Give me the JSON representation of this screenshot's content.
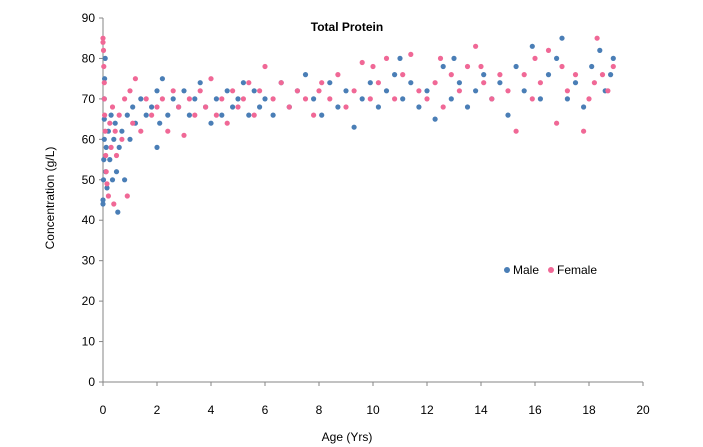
{
  "chart_data": {
    "type": "scatter",
    "title": "Total Protein",
    "xlabel": "Age (Yrs)",
    "ylabel": "Concentration (g/L)",
    "xlim": [
      0,
      20
    ],
    "ylim": [
      0,
      90
    ],
    "x_ticks": [
      "0",
      "2",
      "4",
      "6",
      "8",
      "10",
      "12",
      "14",
      "16",
      "18",
      "20"
    ],
    "y_ticks": [
      "0",
      "10",
      "20",
      "30",
      "40",
      "50",
      "60",
      "70",
      "80",
      "90"
    ],
    "grid": false,
    "legend_position": "right",
    "series": [
      {
        "name": "Male",
        "color": "#4a7eb6",
        "points": [
          [
            0.0,
            44
          ],
          [
            0.0,
            45
          ],
          [
            0.02,
            50
          ],
          [
            0.03,
            55
          ],
          [
            0.05,
            60
          ],
          [
            0.05,
            65
          ],
          [
            0.05,
            70
          ],
          [
            0.06,
            75
          ],
          [
            0.08,
            80
          ],
          [
            0.1,
            52
          ],
          [
            0.12,
            58
          ],
          [
            0.15,
            48
          ],
          [
            0.2,
            62
          ],
          [
            0.25,
            55
          ],
          [
            0.3,
            66
          ],
          [
            0.35,
            50
          ],
          [
            0.4,
            60
          ],
          [
            0.45,
            64
          ],
          [
            0.5,
            52
          ],
          [
            0.55,
            42
          ],
          [
            0.6,
            58
          ],
          [
            0.7,
            62
          ],
          [
            0.8,
            50
          ],
          [
            0.9,
            66
          ],
          [
            1.0,
            60
          ],
          [
            1.1,
            68
          ],
          [
            1.2,
            64
          ],
          [
            1.4,
            70
          ],
          [
            1.6,
            66
          ],
          [
            1.8,
            68
          ],
          [
            2.0,
            58
          ],
          [
            2.0,
            72
          ],
          [
            2.1,
            64
          ],
          [
            2.2,
            75
          ],
          [
            2.4,
            66
          ],
          [
            2.6,
            70
          ],
          [
            2.8,
            68
          ],
          [
            3.0,
            72
          ],
          [
            3.2,
            66
          ],
          [
            3.4,
            70
          ],
          [
            3.6,
            74
          ],
          [
            3.8,
            68
          ],
          [
            4.0,
            64
          ],
          [
            4.2,
            70
          ],
          [
            4.4,
            66
          ],
          [
            4.6,
            72
          ],
          [
            4.8,
            68
          ],
          [
            5.0,
            70
          ],
          [
            5.2,
            74
          ],
          [
            5.4,
            66
          ],
          [
            5.6,
            72
          ],
          [
            5.8,
            68
          ],
          [
            6.0,
            70
          ],
          [
            6.3,
            66
          ],
          [
            6.6,
            74
          ],
          [
            6.9,
            68
          ],
          [
            7.2,
            72
          ],
          [
            7.5,
            76
          ],
          [
            7.8,
            70
          ],
          [
            8.1,
            66
          ],
          [
            8.4,
            74
          ],
          [
            8.7,
            68
          ],
          [
            9.0,
            72
          ],
          [
            9.3,
            63
          ],
          [
            9.6,
            70
          ],
          [
            9.9,
            74
          ],
          [
            10.2,
            68
          ],
          [
            10.5,
            72
          ],
          [
            10.8,
            76
          ],
          [
            11.1,
            70
          ],
          [
            11.4,
            74
          ],
          [
            11.7,
            68
          ],
          [
            12.0,
            72
          ],
          [
            12.3,
            65
          ],
          [
            12.6,
            78
          ],
          [
            12.9,
            70
          ],
          [
            13.2,
            74
          ],
          [
            13.5,
            68
          ],
          [
            13.8,
            72
          ],
          [
            14.1,
            76
          ],
          [
            14.4,
            70
          ],
          [
            14.7,
            74
          ],
          [
            15.0,
            66
          ],
          [
            15.3,
            78
          ],
          [
            15.6,
            72
          ],
          [
            15.9,
            83
          ],
          [
            16.2,
            70
          ],
          [
            16.5,
            76
          ],
          [
            16.8,
            80
          ],
          [
            17.0,
            85
          ],
          [
            17.2,
            70
          ],
          [
            17.5,
            74
          ],
          [
            17.8,
            68
          ],
          [
            18.1,
            78
          ],
          [
            18.4,
            82
          ],
          [
            18.6,
            72
          ],
          [
            18.8,
            76
          ],
          [
            18.9,
            80
          ],
          [
            13.0,
            80
          ],
          [
            11.0,
            80
          ]
        ]
      },
      {
        "name": "Female",
        "color": "#f06896",
        "points": [
          [
            0.0,
            85
          ],
          [
            0.0,
            84
          ],
          [
            0.02,
            82
          ],
          [
            0.03,
            78
          ],
          [
            0.05,
            74
          ],
          [
            0.05,
            70
          ],
          [
            0.06,
            66
          ],
          [
            0.08,
            62
          ],
          [
            0.1,
            56
          ],
          [
            0.12,
            52
          ],
          [
            0.15,
            49
          ],
          [
            0.2,
            46
          ],
          [
            0.25,
            64
          ],
          [
            0.3,
            58
          ],
          [
            0.35,
            68
          ],
          [
            0.4,
            44
          ],
          [
            0.45,
            62
          ],
          [
            0.5,
            56
          ],
          [
            0.6,
            66
          ],
          [
            0.7,
            60
          ],
          [
            0.8,
            70
          ],
          [
            0.9,
            46
          ],
          [
            1.0,
            72
          ],
          [
            1.1,
            64
          ],
          [
            1.2,
            75
          ],
          [
            1.4,
            62
          ],
          [
            1.6,
            70
          ],
          [
            1.8,
            66
          ],
          [
            2.0,
            68
          ],
          [
            2.2,
            70
          ],
          [
            2.4,
            62
          ],
          [
            2.6,
            72
          ],
          [
            2.8,
            68
          ],
          [
            3.0,
            61
          ],
          [
            3.2,
            70
          ],
          [
            3.4,
            66
          ],
          [
            3.6,
            72
          ],
          [
            3.8,
            68
          ],
          [
            4.0,
            75
          ],
          [
            4.2,
            66
          ],
          [
            4.4,
            70
          ],
          [
            4.6,
            64
          ],
          [
            4.8,
            72
          ],
          [
            5.0,
            68
          ],
          [
            5.2,
            70
          ],
          [
            5.4,
            74
          ],
          [
            5.6,
            66
          ],
          [
            5.8,
            72
          ],
          [
            6.0,
            78
          ],
          [
            6.3,
            70
          ],
          [
            6.6,
            74
          ],
          [
            6.9,
            68
          ],
          [
            7.2,
            72
          ],
          [
            7.5,
            70
          ],
          [
            7.8,
            66
          ],
          [
            8.1,
            74
          ],
          [
            8.4,
            70
          ],
          [
            8.7,
            76
          ],
          [
            9.0,
            68
          ],
          [
            9.3,
            72
          ],
          [
            9.6,
            79
          ],
          [
            9.9,
            70
          ],
          [
            10.2,
            74
          ],
          [
            10.5,
            80
          ],
          [
            10.8,
            70
          ],
          [
            11.1,
            76
          ],
          [
            11.4,
            81
          ],
          [
            11.7,
            72
          ],
          [
            12.0,
            70
          ],
          [
            12.3,
            74
          ],
          [
            12.6,
            68
          ],
          [
            12.9,
            76
          ],
          [
            13.2,
            72
          ],
          [
            13.5,
            78
          ],
          [
            13.8,
            83
          ],
          [
            14.1,
            74
          ],
          [
            14.4,
            70
          ],
          [
            14.7,
            76
          ],
          [
            15.0,
            72
          ],
          [
            15.3,
            62
          ],
          [
            15.6,
            76
          ],
          [
            15.9,
            70
          ],
          [
            16.2,
            74
          ],
          [
            16.5,
            82
          ],
          [
            16.8,
            64
          ],
          [
            17.0,
            78
          ],
          [
            17.2,
            72
          ],
          [
            17.5,
            76
          ],
          [
            17.8,
            62
          ],
          [
            18.0,
            70
          ],
          [
            18.2,
            74
          ],
          [
            18.3,
            85
          ],
          [
            18.5,
            76
          ],
          [
            18.7,
            72
          ],
          [
            18.9,
            78
          ],
          [
            16.0,
            80
          ],
          [
            14.0,
            78
          ],
          [
            12.5,
            80
          ],
          [
            10.0,
            78
          ],
          [
            8.0,
            72
          ]
        ]
      }
    ]
  }
}
